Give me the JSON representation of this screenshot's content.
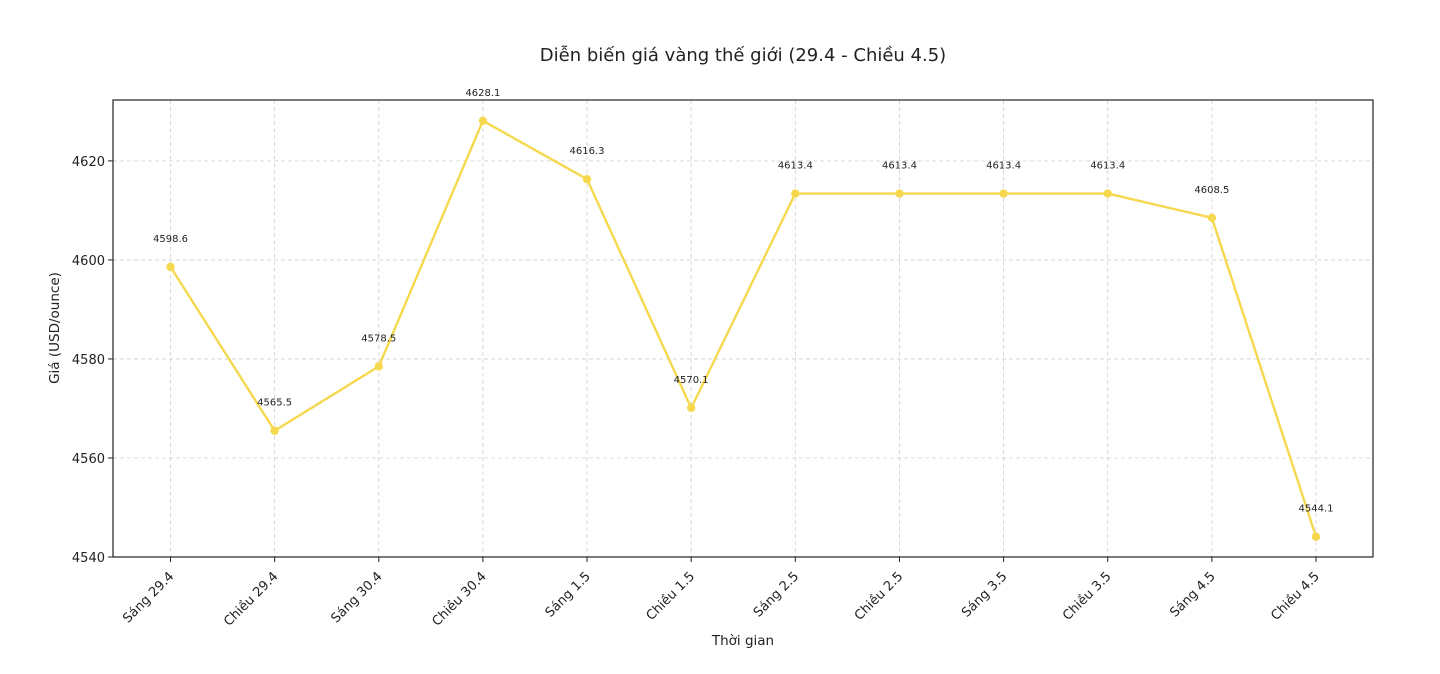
{
  "chart_data": {
    "type": "line",
    "title": "Diễn biến giá vàng thế giới (29.4 - Chiều 4.5)",
    "xlabel": "Thời gian",
    "ylabel": "Giá (USD/ounce)",
    "categories": [
      "Sáng 29.4",
      "Chiều 29.4",
      "Sáng 30.4",
      "Chiều 30.4",
      "Sáng 1.5",
      "Chiều 1.5",
      "Sáng 2.5",
      "Chiều 2.5",
      "Sáng 3.5",
      "Chiều 3.5",
      "Sáng 4.5",
      "Chiều 4.5"
    ],
    "series": [
      {
        "values": [
          4598.6,
          4565.5,
          4578.5,
          4628.1,
          4616.3,
          4570.1,
          4613.4,
          4613.4,
          4613.4,
          4613.4,
          4608.5,
          4544.1
        ],
        "data_labels": [
          "4598.6",
          "4565.5",
          "4578.5",
          "4628.1",
          "4616.3",
          "4570.1",
          "4613.4",
          "4613.4",
          "4613.4",
          "4613.4",
          "4608.5",
          "4544.1"
        ],
        "color": "#f5d84e"
      }
    ],
    "yticks": [
      4540,
      4560,
      4580,
      4600,
      4620
    ],
    "ylim": [
      4540,
      4632.3
    ],
    "grid": true,
    "legend": "none"
  }
}
